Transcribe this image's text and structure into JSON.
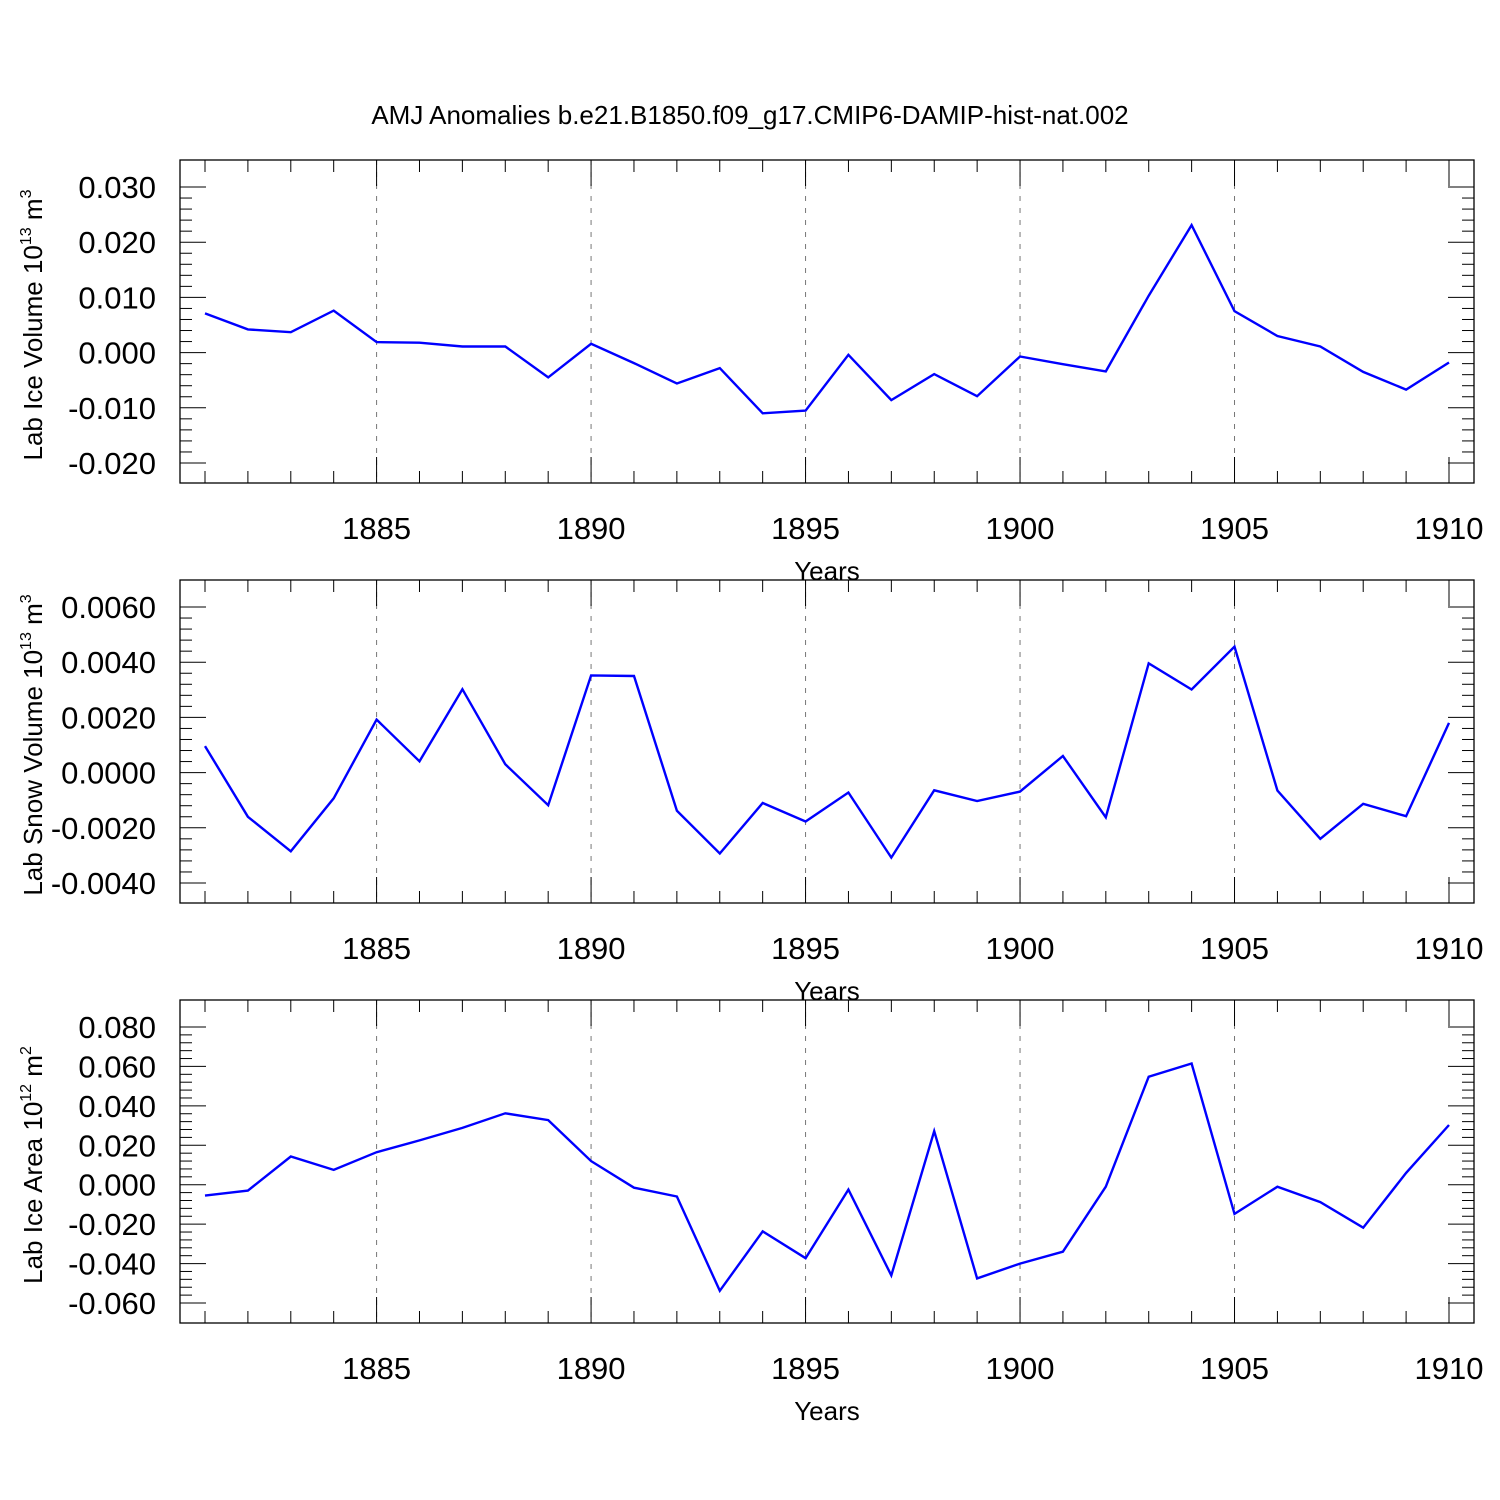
{
  "title": "AMJ Anomalies b.e21.B1850.f09_g17.CMIP6-DAMIP-hist-nat.002",
  "line_color": "#0000ff",
  "chart_data": [
    {
      "type": "line",
      "title": "AMJ Anomalies b.e21.B1850.f09_g17.CMIP6-DAMIP-hist-nat.002",
      "xlabel": "Years",
      "ylabel": "Lab Ice Volume 10",
      "ylabel_exp": "13",
      "ylabel_unit": "m",
      "ylabel_unit_exp": "3",
      "xlim": [
        1881,
        1910
      ],
      "ylim": [
        -0.02,
        0.03
      ],
      "xticks": [
        1885,
        1890,
        1895,
        1900,
        1905,
        1910
      ],
      "yticks": [
        -0.02,
        -0.01,
        0.0,
        0.01,
        0.02,
        0.03
      ],
      "ytick_labels": [
        "-0.020",
        "-0.010",
        "0.000",
        "0.010",
        "0.020",
        "0.030"
      ],
      "grid": "vertical dashed at major x ticks",
      "x": [
        1881,
        1882,
        1883,
        1884,
        1885,
        1886,
        1887,
        1888,
        1889,
        1890,
        1891,
        1892,
        1893,
        1894,
        1895,
        1896,
        1897,
        1898,
        1899,
        1900,
        1901,
        1902,
        1903,
        1904,
        1905,
        1906,
        1907,
        1908,
        1909,
        1910
      ],
      "series": [
        {
          "values": [
            0.0071,
            0.0042,
            0.0037,
            0.0076,
            0.0019,
            0.0018,
            0.0011,
            0.0011,
            -0.0045,
            0.0016,
            -0.0019,
            -0.0056,
            -0.0028,
            -0.011,
            -0.0105,
            -0.0004,
            -0.0086,
            -0.0039,
            -0.0079,
            -0.0007,
            -0.0021,
            -0.0034,
            0.0103,
            0.0231,
            0.0075,
            0.003,
            0.0011,
            -0.0035,
            -0.0067,
            -0.0018
          ]
        }
      ]
    },
    {
      "type": "line",
      "xlabel": "Years",
      "ylabel": "Lab Snow Volume 10",
      "ylabel_exp": "13",
      "ylabel_unit": "m",
      "ylabel_unit_exp": "3",
      "xlim": [
        1881,
        1910
      ],
      "ylim": [
        -0.004,
        0.006
      ],
      "xticks": [
        1885,
        1890,
        1895,
        1900,
        1905,
        1910
      ],
      "yticks": [
        -0.004,
        -0.002,
        0.0,
        0.002,
        0.004,
        0.006
      ],
      "ytick_labels": [
        "-0.0040",
        "-0.0020",
        "0.0000",
        "0.0020",
        "0.0040",
        "0.0060"
      ],
      "grid": "vertical dashed at major x ticks",
      "x": [
        1881,
        1882,
        1883,
        1884,
        1885,
        1886,
        1887,
        1888,
        1889,
        1890,
        1891,
        1892,
        1893,
        1894,
        1895,
        1896,
        1897,
        1898,
        1899,
        1900,
        1901,
        1902,
        1903,
        1904,
        1905,
        1906,
        1907,
        1908,
        1909,
        1910
      ],
      "series": [
        {
          "values": [
            0.00096,
            -0.0016,
            -0.00285,
            -0.00093,
            0.00192,
            0.00041,
            0.00302,
            0.0003,
            -0.00118,
            0.00352,
            0.0035,
            -0.00138,
            -0.00293,
            -0.0011,
            -0.00177,
            -0.00072,
            -0.00308,
            -0.00064,
            -0.00103,
            -0.00069,
            0.0006,
            -0.00162,
            0.00396,
            0.00301,
            0.00456,
            -0.00065,
            -0.0024,
            -0.00113,
            -0.00158,
            0.0018
          ]
        }
      ]
    },
    {
      "type": "line",
      "xlabel": "Years",
      "ylabel": "Lab Ice Area 10",
      "ylabel_exp": "12",
      "ylabel_unit": "m",
      "ylabel_unit_exp": "2",
      "xlim": [
        1881,
        1910
      ],
      "ylim": [
        -0.06,
        0.08
      ],
      "xticks": [
        1885,
        1890,
        1895,
        1900,
        1905,
        1910
      ],
      "yticks": [
        -0.06,
        -0.04,
        -0.02,
        0.0,
        0.02,
        0.04,
        0.06,
        0.08
      ],
      "ytick_labels": [
        "-0.060",
        "-0.040",
        "-0.020",
        "0.000",
        "0.020",
        "0.040",
        "0.060",
        "0.080"
      ],
      "grid": "vertical dashed at major x ticks",
      "x": [
        1881,
        1882,
        1883,
        1884,
        1885,
        1886,
        1887,
        1888,
        1889,
        1890,
        1891,
        1892,
        1893,
        1894,
        1895,
        1896,
        1897,
        1898,
        1899,
        1900,
        1901,
        1902,
        1903,
        1904,
        1905,
        1906,
        1907,
        1908,
        1909,
        1910
      ],
      "series": [
        {
          "values": [
            -0.0055,
            -0.003,
            0.0143,
            0.0075,
            0.0165,
            0.0225,
            0.0288,
            0.0362,
            0.0328,
            0.012,
            -0.0015,
            -0.006,
            -0.0538,
            -0.0237,
            -0.0373,
            -0.0025,
            -0.046,
            0.0272,
            -0.0475,
            -0.04,
            -0.034,
            -0.001,
            0.0548,
            0.0615,
            -0.0148,
            -0.001,
            -0.0088,
            -0.0218,
            0.006,
            0.0303
          ]
        }
      ]
    }
  ]
}
